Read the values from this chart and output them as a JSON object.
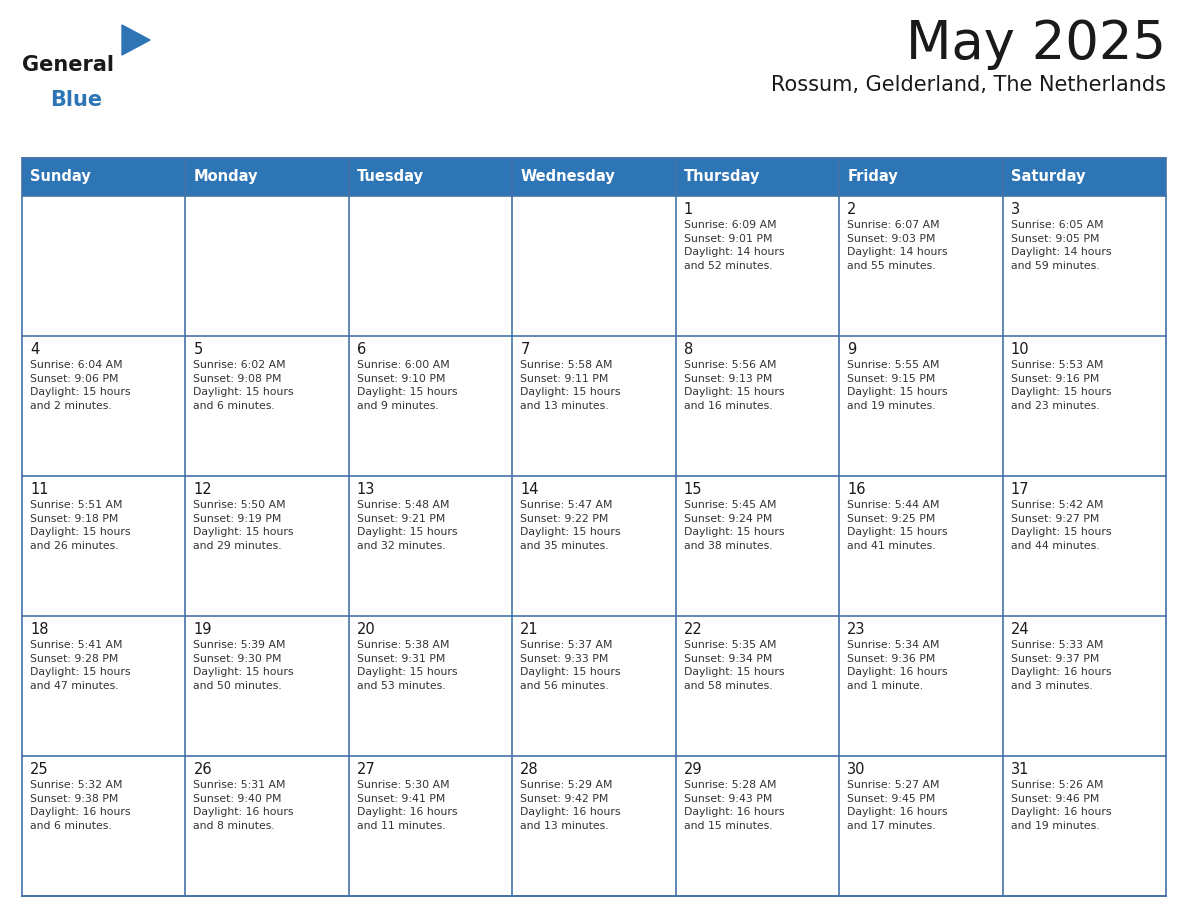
{
  "title": "May 2025",
  "subtitle": "Rossum, Gelderland, The Netherlands",
  "header_bg_color": "#2E75B6",
  "header_text_color": "#FFFFFF",
  "cell_bg_color": "#FFFFFF",
  "border_color": "#4472A8",
  "day_names": [
    "Sunday",
    "Monday",
    "Tuesday",
    "Wednesday",
    "Thursday",
    "Friday",
    "Saturday"
  ],
  "title_color": "#1a1a1a",
  "subtitle_color": "#1a1a1a",
  "cell_text_color": "#333333",
  "day_num_color": "#1a1a1a",
  "logo_general_color": "#1a1a1a",
  "logo_blue_color": "#2E75B6",
  "weeks": [
    [
      {
        "day": "",
        "info": ""
      },
      {
        "day": "",
        "info": ""
      },
      {
        "day": "",
        "info": ""
      },
      {
        "day": "",
        "info": ""
      },
      {
        "day": "1",
        "info": "Sunrise: 6:09 AM\nSunset: 9:01 PM\nDaylight: 14 hours\nand 52 minutes."
      },
      {
        "day": "2",
        "info": "Sunrise: 6:07 AM\nSunset: 9:03 PM\nDaylight: 14 hours\nand 55 minutes."
      },
      {
        "day": "3",
        "info": "Sunrise: 6:05 AM\nSunset: 9:05 PM\nDaylight: 14 hours\nand 59 minutes."
      }
    ],
    [
      {
        "day": "4",
        "info": "Sunrise: 6:04 AM\nSunset: 9:06 PM\nDaylight: 15 hours\nand 2 minutes."
      },
      {
        "day": "5",
        "info": "Sunrise: 6:02 AM\nSunset: 9:08 PM\nDaylight: 15 hours\nand 6 minutes."
      },
      {
        "day": "6",
        "info": "Sunrise: 6:00 AM\nSunset: 9:10 PM\nDaylight: 15 hours\nand 9 minutes."
      },
      {
        "day": "7",
        "info": "Sunrise: 5:58 AM\nSunset: 9:11 PM\nDaylight: 15 hours\nand 13 minutes."
      },
      {
        "day": "8",
        "info": "Sunrise: 5:56 AM\nSunset: 9:13 PM\nDaylight: 15 hours\nand 16 minutes."
      },
      {
        "day": "9",
        "info": "Sunrise: 5:55 AM\nSunset: 9:15 PM\nDaylight: 15 hours\nand 19 minutes."
      },
      {
        "day": "10",
        "info": "Sunrise: 5:53 AM\nSunset: 9:16 PM\nDaylight: 15 hours\nand 23 minutes."
      }
    ],
    [
      {
        "day": "11",
        "info": "Sunrise: 5:51 AM\nSunset: 9:18 PM\nDaylight: 15 hours\nand 26 minutes."
      },
      {
        "day": "12",
        "info": "Sunrise: 5:50 AM\nSunset: 9:19 PM\nDaylight: 15 hours\nand 29 minutes."
      },
      {
        "day": "13",
        "info": "Sunrise: 5:48 AM\nSunset: 9:21 PM\nDaylight: 15 hours\nand 32 minutes."
      },
      {
        "day": "14",
        "info": "Sunrise: 5:47 AM\nSunset: 9:22 PM\nDaylight: 15 hours\nand 35 minutes."
      },
      {
        "day": "15",
        "info": "Sunrise: 5:45 AM\nSunset: 9:24 PM\nDaylight: 15 hours\nand 38 minutes."
      },
      {
        "day": "16",
        "info": "Sunrise: 5:44 AM\nSunset: 9:25 PM\nDaylight: 15 hours\nand 41 minutes."
      },
      {
        "day": "17",
        "info": "Sunrise: 5:42 AM\nSunset: 9:27 PM\nDaylight: 15 hours\nand 44 minutes."
      }
    ],
    [
      {
        "day": "18",
        "info": "Sunrise: 5:41 AM\nSunset: 9:28 PM\nDaylight: 15 hours\nand 47 minutes."
      },
      {
        "day": "19",
        "info": "Sunrise: 5:39 AM\nSunset: 9:30 PM\nDaylight: 15 hours\nand 50 minutes."
      },
      {
        "day": "20",
        "info": "Sunrise: 5:38 AM\nSunset: 9:31 PM\nDaylight: 15 hours\nand 53 minutes."
      },
      {
        "day": "21",
        "info": "Sunrise: 5:37 AM\nSunset: 9:33 PM\nDaylight: 15 hours\nand 56 minutes."
      },
      {
        "day": "22",
        "info": "Sunrise: 5:35 AM\nSunset: 9:34 PM\nDaylight: 15 hours\nand 58 minutes."
      },
      {
        "day": "23",
        "info": "Sunrise: 5:34 AM\nSunset: 9:36 PM\nDaylight: 16 hours\nand 1 minute."
      },
      {
        "day": "24",
        "info": "Sunrise: 5:33 AM\nSunset: 9:37 PM\nDaylight: 16 hours\nand 3 minutes."
      }
    ],
    [
      {
        "day": "25",
        "info": "Sunrise: 5:32 AM\nSunset: 9:38 PM\nDaylight: 16 hours\nand 6 minutes."
      },
      {
        "day": "26",
        "info": "Sunrise: 5:31 AM\nSunset: 9:40 PM\nDaylight: 16 hours\nand 8 minutes."
      },
      {
        "day": "27",
        "info": "Sunrise: 5:30 AM\nSunset: 9:41 PM\nDaylight: 16 hours\nand 11 minutes."
      },
      {
        "day": "28",
        "info": "Sunrise: 5:29 AM\nSunset: 9:42 PM\nDaylight: 16 hours\nand 13 minutes."
      },
      {
        "day": "29",
        "info": "Sunrise: 5:28 AM\nSunset: 9:43 PM\nDaylight: 16 hours\nand 15 minutes."
      },
      {
        "day": "30",
        "info": "Sunrise: 5:27 AM\nSunset: 9:45 PM\nDaylight: 16 hours\nand 17 minutes."
      },
      {
        "day": "31",
        "info": "Sunrise: 5:26 AM\nSunset: 9:46 PM\nDaylight: 16 hours\nand 19 minutes."
      }
    ]
  ]
}
